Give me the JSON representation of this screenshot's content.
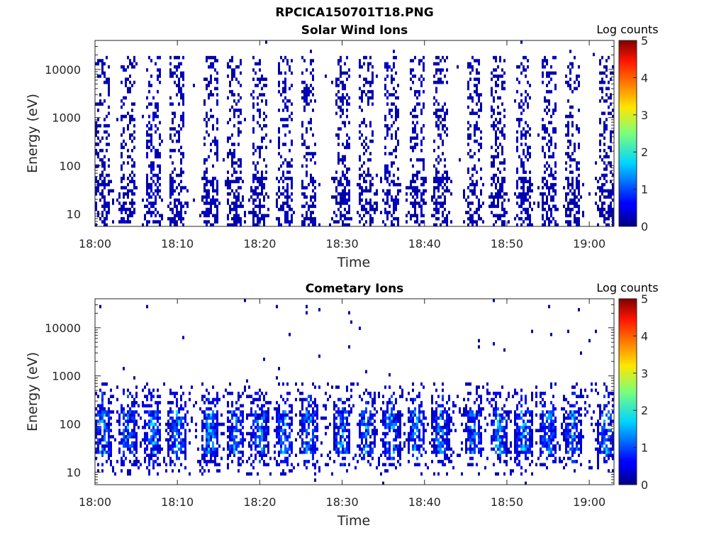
{
  "figure": {
    "title": "RPCICA150701T18.PNG"
  },
  "chart_data": [
    {
      "type": "heatmap",
      "title": "Solar Wind Ions",
      "xlabel": "Time",
      "ylabel": "Energy (eV)",
      "y_scale": "log",
      "xlim": [
        "18:00",
        "19:03"
      ],
      "ylim": [
        5.5,
        40000
      ],
      "x_ticks": [
        "18:00",
        "18:10",
        "18:20",
        "18:30",
        "18:40",
        "18:50",
        "19:00"
      ],
      "y_ticks": [
        10,
        100,
        1000,
        10000
      ],
      "y_tick_labels": [
        "10",
        "100",
        "1000",
        "10000"
      ],
      "colorbar": {
        "label": "Log counts",
        "range": [
          0,
          5
        ],
        "ticks": [
          "0",
          "1",
          "2",
          "3",
          "4",
          "5"
        ],
        "colormap": "jet"
      },
      "sweep_minutes": [
        "18:01",
        "18:04",
        "18:07",
        "18:10",
        "18:14",
        "18:17",
        "18:20",
        "18:23",
        "18:26",
        "18:30",
        "18:33",
        "18:36",
        "18:39",
        "18:42",
        "18:46",
        "18:49",
        "18:52",
        "18:55",
        "18:58",
        "19:02"
      ],
      "description_values": {
        "dominant_log_counts": 0.2,
        "energy_extent_eV": [
          6,
          20000
        ]
      }
    },
    {
      "type": "heatmap",
      "title": "Cometary Ions",
      "xlabel": "Time",
      "ylabel": "Energy (eV)",
      "y_scale": "log",
      "xlim": [
        "18:00",
        "19:03"
      ],
      "ylim": [
        5.5,
        40000
      ],
      "x_ticks": [
        "18:00",
        "18:10",
        "18:20",
        "18:30",
        "18:40",
        "18:50",
        "19:00"
      ],
      "y_ticks": [
        10,
        100,
        1000,
        10000
      ],
      "y_tick_labels": [
        "10",
        "100",
        "1000",
        "10000"
      ],
      "colorbar": {
        "label": "Log counts",
        "range": [
          0,
          5
        ],
        "ticks": [
          "0",
          "1",
          "2",
          "3",
          "4",
          "5"
        ],
        "colormap": "jet"
      },
      "sweep_minutes": [
        "18:01",
        "18:04",
        "18:07",
        "18:10",
        "18:14",
        "18:17",
        "18:20",
        "18:23",
        "18:26",
        "18:30",
        "18:33",
        "18:36",
        "18:39",
        "18:42",
        "18:46",
        "18:49",
        "18:52",
        "18:55",
        "18:58",
        "19:02"
      ],
      "description_values": {
        "peak_log_counts": 2.2,
        "core_energy_range_eV": [
          15,
          400
        ]
      }
    }
  ]
}
